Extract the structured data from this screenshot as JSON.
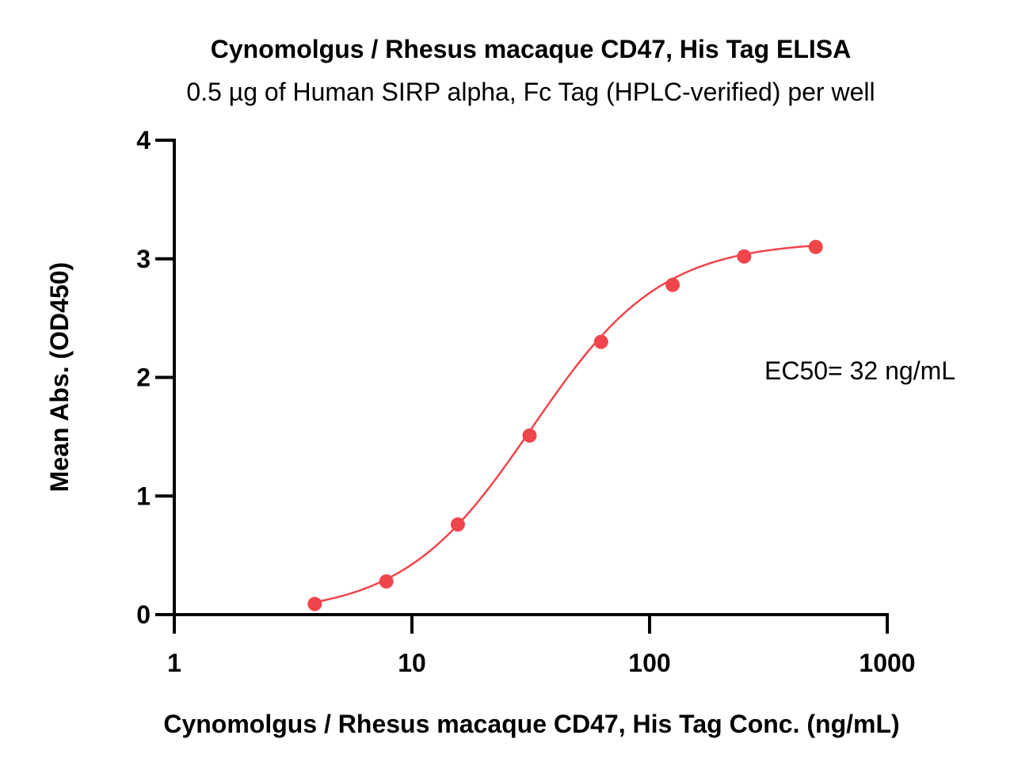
{
  "chart_data": {
    "type": "scatter",
    "title": "Cynomolgus / Rhesus macaque CD47, His Tag ELISA",
    "subtitle": "0.5 µg of Human SIRP alpha, Fc Tag (HPLC-verified) per well",
    "xlabel": "Cynomolgus / Rhesus macaque CD47, His Tag Conc. (ng/mL)",
    "ylabel": "Mean Abs. (OD450)",
    "x_scale": "log",
    "xlim": [
      1,
      1000
    ],
    "ylim": [
      0,
      4
    ],
    "x_ticks": [
      "1",
      "10",
      "100",
      "1000"
    ],
    "y_ticks": [
      "0",
      "1",
      "2",
      "3",
      "4"
    ],
    "grid": false,
    "annotation": "EC50= 32 ng/mL",
    "series": [
      {
        "x": [
          3.9,
          7.8,
          15.6,
          31.25,
          62.5,
          125,
          250,
          500
        ],
        "y": [
          0.09,
          0.28,
          0.76,
          1.51,
          2.3,
          2.78,
          3.02,
          3.1
        ],
        "color": "#f0454b",
        "fit": "4PL"
      }
    ]
  }
}
